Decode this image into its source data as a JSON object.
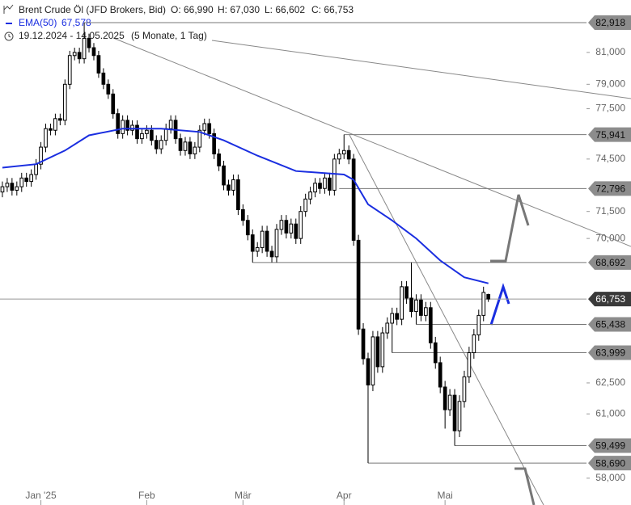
{
  "chart_data": {
    "type": "candlestick",
    "title": "Brent Crude Öl (JFD Brokers, Bid)",
    "ohlc_labels": [
      "O: 66,990",
      "H: 67,030",
      "L: 66,602",
      "C: 66,753"
    ],
    "ema_name": "EMA(50)",
    "ema_value_label": "67,578",
    "date_range": "19.12.2024 - 14.05.2025",
    "period": "(5 Monate, 1 Tag)",
    "scale": "log",
    "ylim": [
      57.7,
      84.4
    ],
    "xlim": [
      -0.5,
      121.4
    ],
    "yticks": [
      {
        "value": 58,
        "label": "58,000"
      },
      {
        "value": 61,
        "label": "61,000"
      },
      {
        "value": 62.5,
        "label": "62,500"
      },
      {
        "value": 70,
        "label": "70,000"
      },
      {
        "value": 71.5,
        "label": "71,500"
      },
      {
        "value": 74.5,
        "label": "74,500"
      },
      {
        "value": 77.5,
        "label": "77,500"
      },
      {
        "value": 79,
        "label": "79,000"
      },
      {
        "value": 81,
        "label": "81,000"
      }
    ],
    "xticks": [
      {
        "value": 8,
        "label": "Jan '25"
      },
      {
        "value": 30,
        "label": "Feb"
      },
      {
        "value": 50,
        "label": "Mär"
      },
      {
        "value": 71,
        "label": "Apr"
      },
      {
        "value": 92,
        "label": "Mai"
      }
    ],
    "open": [
      72.6,
      72.9,
      73.1,
      72.7,
      72.9,
      73.4,
      73.2,
      73.6,
      74.2,
      75.2,
      76.3,
      76.2,
      76.9,
      76.8,
      79.0,
      80.8,
      81.0,
      80.6,
      81.9,
      81.3,
      80.8,
      79.7,
      79.0,
      78.4,
      77.2,
      76.0,
      76.8,
      76.2,
      76.5,
      75.7,
      76.0,
      76.2,
      75.6,
      75.1,
      75.6,
      76.3,
      76.8,
      75.7,
      75.0,
      75.5,
      74.8,
      75.2,
      76.2,
      76.6,
      76.0,
      74.8,
      74.1,
      73.0,
      72.7,
      73.3,
      71.6,
      71.0,
      70.2,
      69.3,
      69.5,
      70.4,
      69.3,
      69.0,
      70.5,
      71.0,
      70.3,
      70.8,
      70.0,
      71.5,
      72.2,
      72.6,
      73.1,
      72.8,
      73.4,
      72.7,
      74.5,
      74.8,
      75.0,
      74.5,
      69.9,
      65.2,
      63.7,
      62.4,
      64.8,
      63.3,
      65.0,
      65.5,
      66.0,
      65.7,
      67.4,
      66.8,
      66.1,
      66.7,
      65.9,
      66.3,
      64.5,
      63.5,
      62.3,
      61.2,
      61.9,
      60.2,
      61.6,
      62.8,
      64.0,
      64.9,
      65.9,
      66.99
    ],
    "high": [
      73.2,
      73.4,
      73.4,
      73.2,
      73.7,
      73.7,
      73.9,
      74.5,
      75.5,
      76.6,
      76.6,
      77.2,
      77.2,
      79.3,
      81.1,
      81.3,
      81.3,
      82.918,
      82.2,
      81.6,
      81.1,
      80.0,
      79.3,
      78.7,
      77.5,
      77.1,
      77.1,
      76.8,
      76.8,
      76.3,
      76.5,
      76.5,
      75.9,
      75.9,
      76.6,
      77.1,
      77.1,
      76.0,
      75.8,
      75.8,
      75.5,
      76.5,
      76.9,
      76.9,
      76.3,
      75.1,
      74.4,
      73.3,
      73.6,
      73.6,
      71.9,
      71.3,
      70.5,
      69.8,
      70.7,
      70.7,
      69.6,
      70.8,
      71.3,
      71.3,
      71.1,
      71.1,
      71.8,
      72.5,
      72.9,
      73.4,
      73.4,
      73.7,
      73.7,
      74.8,
      75.1,
      75.941,
      75.3,
      74.8,
      70.2,
      65.5,
      64.0,
      65.1,
      65.1,
      65.3,
      65.8,
      66.3,
      66.3,
      67.7,
      67.7,
      68.692,
      67.0,
      67.0,
      66.6,
      66.6,
      64.8,
      63.8,
      62.6,
      62.2,
      62.2,
      61.9,
      63.1,
      64.3,
      65.2,
      66.2,
      67.4,
      67.03
    ],
    "low": [
      72.3,
      72.6,
      72.4,
      72.4,
      72.6,
      72.9,
      72.9,
      73.3,
      73.9,
      74.9,
      75.9,
      75.9,
      76.5,
      76.5,
      78.7,
      80.5,
      80.3,
      80.3,
      81.0,
      80.5,
      79.4,
      78.7,
      78.1,
      76.9,
      75.7,
      75.7,
      75.9,
      75.9,
      75.4,
      75.4,
      75.7,
      75.3,
      74.8,
      74.8,
      75.3,
      76.0,
      75.4,
      74.7,
      74.7,
      74.5,
      74.5,
      74.9,
      75.9,
      75.7,
      74.5,
      73.8,
      72.7,
      72.4,
      72.4,
      71.3,
      70.7,
      69.9,
      68.692,
      69.0,
      69.2,
      69.0,
      68.7,
      68.7,
      70.2,
      70.0,
      70.0,
      69.7,
      69.7,
      71.2,
      71.9,
      72.3,
      72.5,
      72.5,
      72.4,
      72.4,
      74.2,
      74.5,
      74.2,
      69.6,
      64.9,
      63.4,
      58.69,
      62.1,
      63.0,
      63.0,
      64.7,
      63.999,
      65.4,
      65.4,
      66.5,
      65.8,
      65.438,
      65.6,
      65.6,
      64.2,
      63.2,
      62.0,
      60.3,
      60.9,
      59.499,
      59.9,
      61.3,
      62.5,
      63.7,
      64.6,
      65.6,
      66.602
    ],
    "close": [
      72.9,
      73.1,
      72.7,
      72.9,
      73.4,
      73.2,
      73.6,
      74.2,
      75.2,
      76.3,
      76.2,
      76.9,
      76.8,
      79.0,
      80.8,
      81.0,
      80.6,
      81.9,
      81.3,
      80.8,
      79.7,
      79.0,
      78.4,
      77.2,
      76.0,
      76.8,
      76.2,
      76.5,
      75.7,
      76.0,
      76.2,
      75.6,
      75.1,
      75.6,
      76.3,
      76.8,
      75.7,
      75.0,
      75.5,
      74.8,
      75.2,
      76.2,
      76.6,
      76.0,
      74.8,
      74.1,
      73.0,
      72.7,
      73.3,
      71.6,
      71.0,
      70.2,
      69.3,
      69.5,
      70.4,
      69.3,
      69.0,
      70.5,
      71.0,
      70.3,
      70.8,
      70.0,
      71.5,
      72.2,
      72.6,
      73.1,
      72.8,
      73.4,
      72.7,
      74.5,
      74.8,
      75.0,
      74.5,
      69.9,
      65.2,
      63.7,
      62.4,
      64.8,
      63.3,
      65.0,
      65.5,
      66.0,
      65.7,
      67.4,
      66.8,
      66.1,
      66.7,
      65.9,
      66.3,
      64.5,
      63.5,
      62.3,
      61.2,
      61.9,
      60.2,
      61.6,
      62.8,
      64.0,
      64.9,
      65.9,
      67.1,
      66.753
    ],
    "ema": {
      "color": "#1a2ee0",
      "x": [
        0,
        7,
        13,
        18,
        25,
        33,
        41,
        46,
        53,
        61,
        71,
        73,
        76,
        81,
        86,
        91,
        96,
        101
      ],
      "values": [
        74.0,
        74.2,
        75.0,
        75.9,
        76.3,
        76.3,
        76.1,
        75.6,
        74.7,
        73.8,
        73.6,
        73.3,
        71.9,
        71.0,
        70.0,
        68.8,
        67.9,
        67.578
      ]
    },
    "levels": [
      {
        "value": 82.918,
        "label": "82,918"
      },
      {
        "value": 75.941,
        "label": "75,941"
      },
      {
        "value": 72.796,
        "label": "72,796"
      },
      {
        "value": 68.692,
        "label": "68,692"
      },
      {
        "value": 66.753,
        "label": "66,753"
      },
      {
        "value": 65.438,
        "label": "65,438"
      },
      {
        "value": 63.999,
        "label": "63,999"
      },
      {
        "value": 59.499,
        "label": "59,499"
      },
      {
        "value": 58.69,
        "label": "58,690"
      }
    ],
    "current_level": 4
  }
}
